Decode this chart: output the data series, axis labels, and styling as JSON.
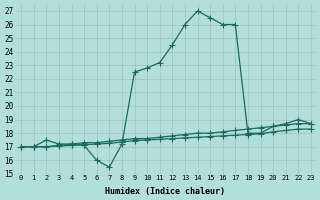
{
  "xlabel": "Humidex (Indice chaleur)",
  "background_color": "#b2dfdb",
  "grid_color": "#999999",
  "line_color": "#1a6b5e",
  "xlim": [
    -0.5,
    23.3
  ],
  "ylim": [
    15,
    27.5
  ],
  "yticks": [
    15,
    16,
    17,
    18,
    19,
    20,
    21,
    22,
    23,
    24,
    25,
    26,
    27
  ],
  "xticks": [
    0,
    1,
    2,
    3,
    4,
    5,
    6,
    7,
    8,
    9,
    10,
    11,
    12,
    13,
    14,
    15,
    16,
    17,
    18,
    19,
    20,
    21,
    22,
    23
  ],
  "series1_x": [
    0,
    1,
    2,
    3,
    4,
    5,
    6,
    7,
    8,
    9,
    10,
    11,
    12,
    13,
    14,
    15,
    16,
    17,
    18,
    19,
    20,
    21,
    22,
    23
  ],
  "series1_y": [
    17.0,
    17.0,
    17.5,
    17.2,
    17.2,
    17.1,
    16.0,
    15.5,
    17.2,
    22.5,
    22.8,
    23.2,
    24.5,
    26.0,
    27.0,
    26.5,
    26.0,
    26.0,
    18.0,
    18.0,
    18.5,
    18.7,
    19.0,
    18.7
  ],
  "series2_x": [
    0,
    1,
    2,
    3,
    4,
    5,
    6,
    7,
    8,
    9,
    10,
    11,
    12,
    13,
    14,
    15,
    16,
    17,
    18,
    19,
    20,
    21,
    22,
    23
  ],
  "series2_y": [
    17.0,
    17.0,
    17.0,
    17.1,
    17.2,
    17.3,
    17.3,
    17.4,
    17.5,
    17.6,
    17.6,
    17.7,
    17.8,
    17.9,
    18.0,
    18.0,
    18.1,
    18.2,
    18.3,
    18.4,
    18.5,
    18.6,
    18.7,
    18.7
  ],
  "series3_x": [
    0,
    1,
    2,
    3,
    4,
    5,
    6,
    7,
    8,
    9,
    10,
    11,
    12,
    13,
    14,
    15,
    16,
    17,
    18,
    19,
    20,
    21,
    22,
    23
  ],
  "series3_y": [
    17.0,
    17.0,
    17.0,
    17.05,
    17.1,
    17.15,
    17.2,
    17.25,
    17.35,
    17.45,
    17.5,
    17.55,
    17.6,
    17.65,
    17.7,
    17.75,
    17.8,
    17.85,
    17.9,
    17.95,
    18.1,
    18.2,
    18.3,
    18.3
  ]
}
